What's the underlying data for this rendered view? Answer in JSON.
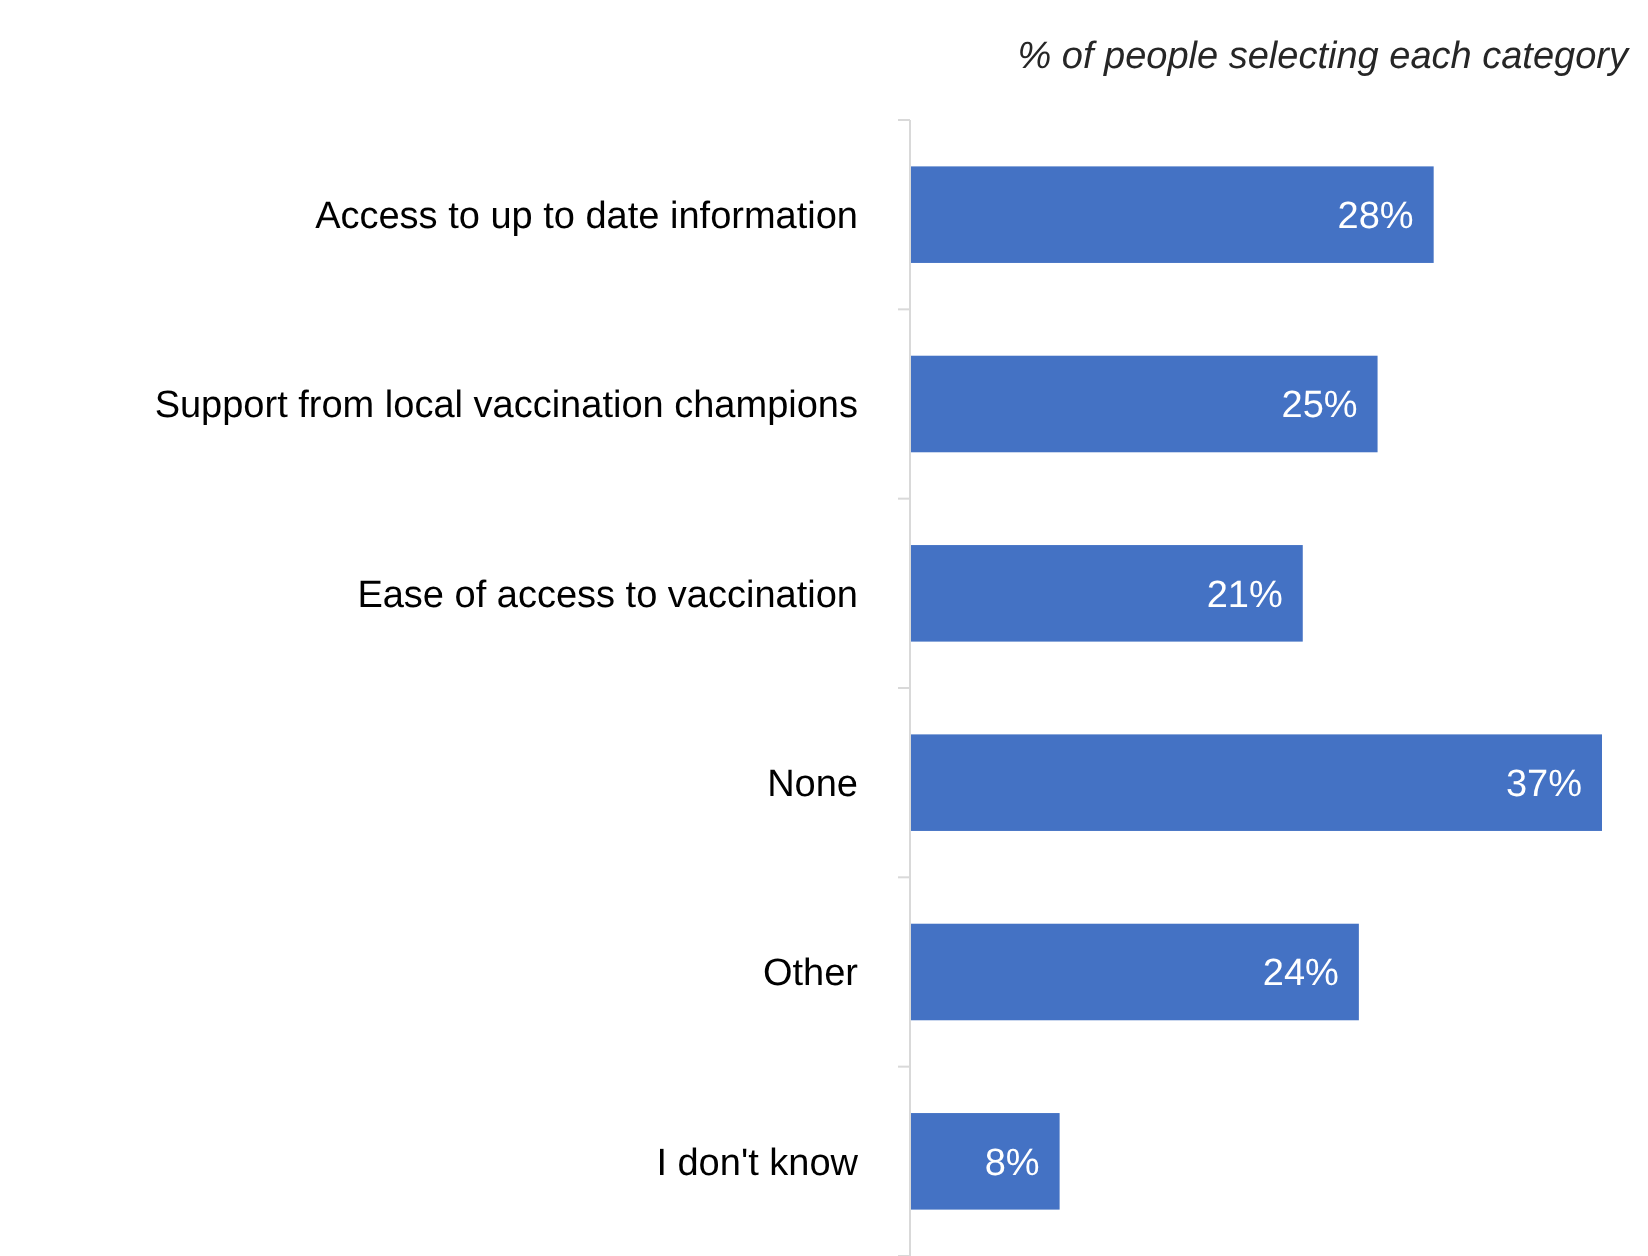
{
  "chart_data": {
    "type": "bar",
    "orientation": "horizontal",
    "title": "% of people selecting each category",
    "categories": [
      "Access to up to date information",
      "Support from local vaccination champions",
      "Ease of access to vaccination",
      "None",
      "Other",
      "I don't know"
    ],
    "values": [
      28,
      25,
      21,
      37,
      24,
      8
    ],
    "value_labels": [
      "28%",
      "25%",
      "21%",
      "37%",
      "24%",
      "8%"
    ],
    "color": "#4472c4"
  }
}
